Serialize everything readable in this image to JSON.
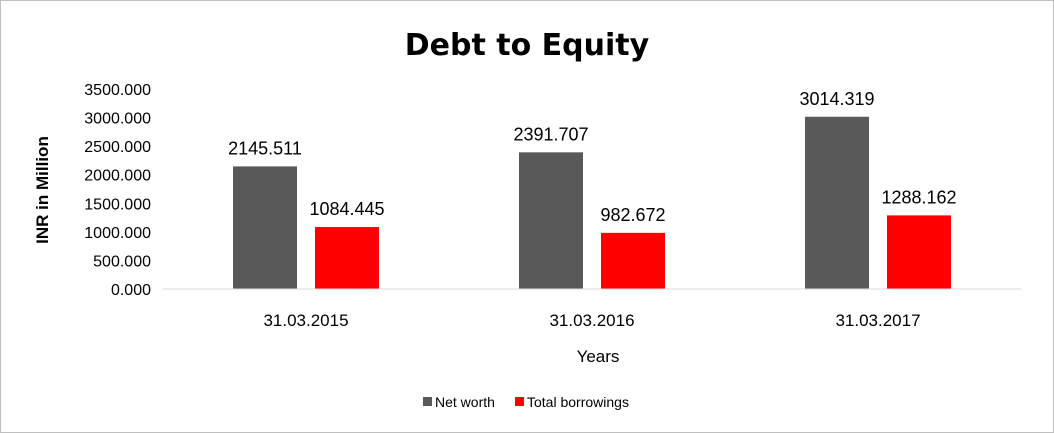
{
  "chart_data": {
    "type": "bar",
    "title": "Debt to Equity",
    "xlabel": "Years",
    "ylabel": "INR in Million",
    "categories": [
      "31.03.2015",
      "31.03.2016",
      "31.03.2017"
    ],
    "series": [
      {
        "name": "Net worth",
        "color": "#595959",
        "values": [
          2145.511,
          2391.707,
          3014.319
        ],
        "labels": [
          "2145.511",
          "2391.707",
          "3014.319"
        ]
      },
      {
        "name": "Total borrowings",
        "color": "#ff0000",
        "values": [
          1084.445,
          982.672,
          1288.162
        ],
        "labels": [
          "1084.445",
          "982.672",
          "1288.162"
        ]
      }
    ],
    "ylim": [
      0,
      3500
    ],
    "yticks": [
      "0.000",
      "500.000",
      "1000.000",
      "1500.000",
      "2000.000",
      "2500.000",
      "3000.000",
      "3500.000"
    ],
    "grid": false,
    "legend_position": "bottom"
  }
}
